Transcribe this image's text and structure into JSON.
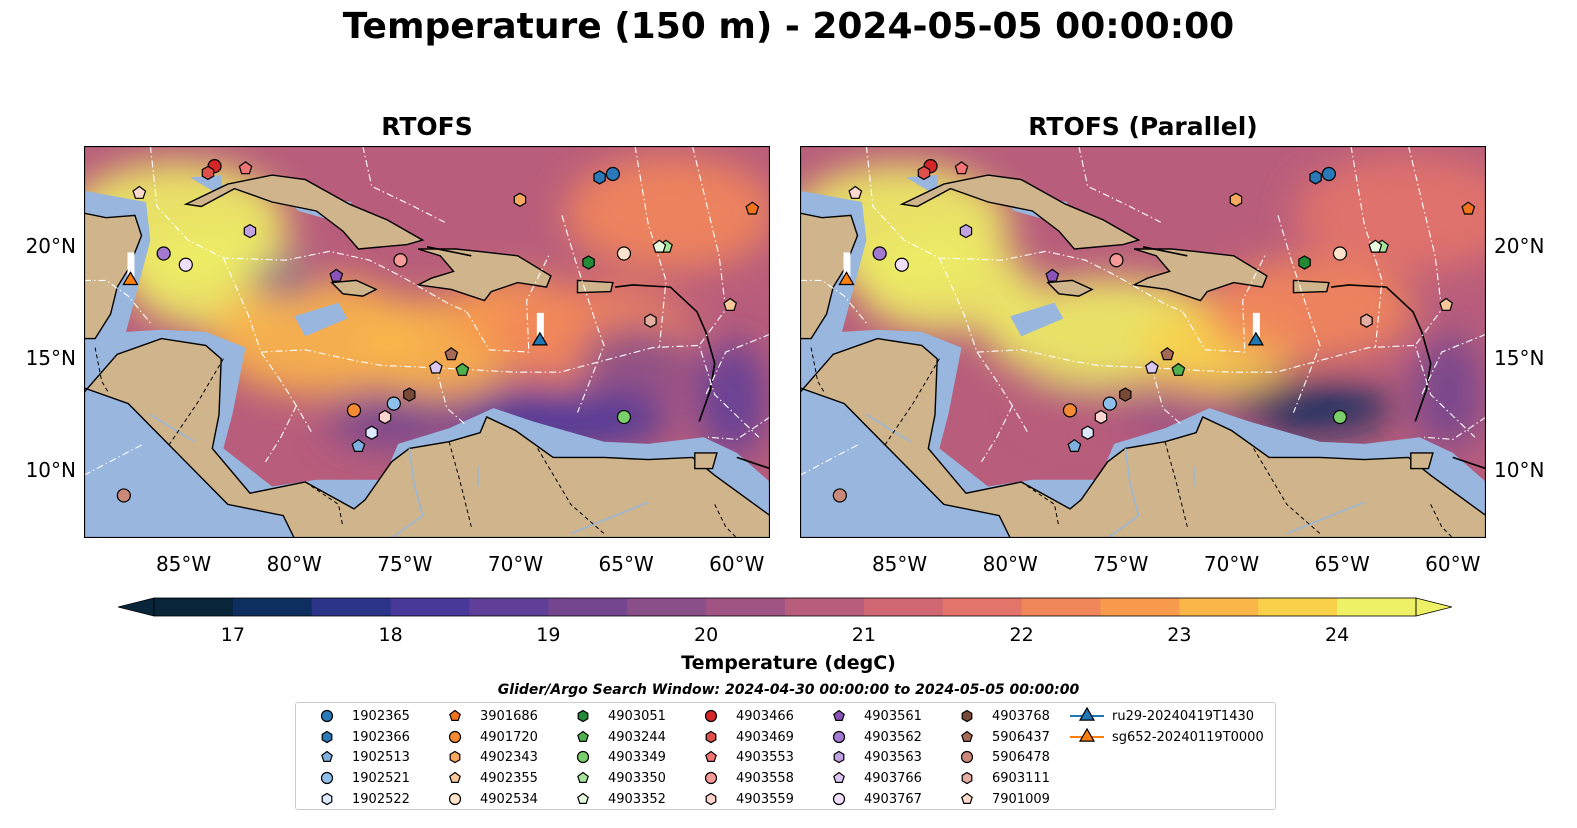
{
  "title": "Temperature (150 m) - 2024-05-05 00:00:00",
  "colorbar": {
    "label": "Temperature (degC)",
    "min": 16.5,
    "max": 24.5,
    "ticks": [
      "17",
      "18",
      "19",
      "20",
      "21",
      "22",
      "23",
      "24"
    ],
    "extend": "both",
    "colors": [
      "#08253a",
      "#0d2e5e",
      "#2b3488",
      "#48389a",
      "#5f3f98",
      "#74468f",
      "#8a4e88",
      "#a05483",
      "#b85d7c",
      "#cf6873",
      "#e3746a",
      "#f2865b",
      "#f89b4c",
      "#fbb64a",
      "#f8d04a",
      "#eef065"
    ]
  },
  "search_window": "Glider/Argo Search Window: 2024-04-30 00:00:00 to 2024-05-05 00:00:00",
  "colors": {
    "land": "#d0b48c",
    "shelf": "#98b6de",
    "eez_lines": "#ffffff",
    "deep_cold": "#0a2a3a"
  },
  "chart_data": [
    {
      "type": "heatmap",
      "title": "RTOFS",
      "variable": "Temperature (150 m)",
      "units": "degC",
      "x_ticks": [
        "85°W",
        "80°W",
        "75°W",
        "70°W",
        "65°W",
        "60°W"
      ],
      "y_ticks": [
        "20°N",
        "15°N",
        "10°N"
      ],
      "y_tick_side": "left",
      "xlim": [
        -89.5,
        -58.5
      ],
      "ylim": [
        7,
        24.5
      ],
      "warm_regions": [
        "Yucatan Channel / Cayman Sea",
        "Central Caribbean near 72°W 15°N"
      ],
      "cold_regions": [
        "Venezuela / Colombia upwelling coast",
        "Pacific south of Central America"
      ]
    },
    {
      "type": "heatmap",
      "title": "RTOFS (Parallel)",
      "variable": "Temperature (150 m)",
      "units": "degC",
      "x_ticks": [
        "85°W",
        "80°W",
        "75°W",
        "70°W",
        "65°W",
        "60°W"
      ],
      "y_ticks": [
        "20°N",
        "15°N",
        "10°N"
      ],
      "y_tick_side": "right",
      "xlim": [
        -89.5,
        -58.5
      ],
      "ylim": [
        7,
        24.5
      ],
      "warm_regions": [
        "Yucatan Channel / Cayman Sea",
        "Central Caribbean 70-75°W 15-17°N"
      ],
      "cold_regions": [
        "Venezuela / Colombia upwelling coast",
        "Pacific south of Central America"
      ]
    }
  ],
  "platforms": [
    {
      "name": "1902365",
      "marker": "circle",
      "color": "#2a79b9",
      "lon": -65.6,
      "lat": 23.25
    },
    {
      "name": "1902366",
      "marker": "hexagon",
      "color": "#2a79b9",
      "lon": -66.2,
      "lat": 23.1
    },
    {
      "name": "1902513",
      "marker": "pentagon",
      "color": "#7fb0e0",
      "lon": -77.1,
      "lat": 11.1
    },
    {
      "name": "1902521",
      "marker": "circle",
      "color": "#8fc0ec",
      "lon": -75.5,
      "lat": 13.0
    },
    {
      "name": "1902522",
      "marker": "hexagon",
      "color": "#dde9ff",
      "lon": -76.5,
      "lat": 11.7
    },
    {
      "name": "3901686",
      "marker": "pentagon",
      "color": "#f1731c",
      "lon": -59.3,
      "lat": 21.7
    },
    {
      "name": "4901720",
      "marker": "circle",
      "color": "#f58a35",
      "lon": -77.3,
      "lat": 12.7
    },
    {
      "name": "4902343",
      "marker": "hexagon",
      "color": "#f7a95e",
      "lon": -69.8,
      "lat": 22.1
    },
    {
      "name": "4902355",
      "marker": "pentagon",
      "color": "#f7c89a",
      "lon": -60.3,
      "lat": 17.4
    },
    {
      "name": "4902534",
      "marker": "circle",
      "color": "#fde3cc",
      "lon": -65.1,
      "lat": 19.7
    },
    {
      "name": "4903051",
      "marker": "hexagon",
      "color": "#238b35",
      "lon": -66.7,
      "lat": 19.3
    },
    {
      "name": "4903244",
      "marker": "pentagon",
      "color": "#4fb14d",
      "lon": -72.4,
      "lat": 14.5
    },
    {
      "name": "4903349",
      "marker": "circle",
      "color": "#7acf6b",
      "lon": -65.1,
      "lat": 12.4
    },
    {
      "name": "4903350",
      "marker": "pentagon",
      "color": "#a7e39a",
      "lon": -63.2,
      "lat": 20.0
    },
    {
      "name": "4903352",
      "marker": "pentagon",
      "color": "#e6f9dd",
      "lon": -63.5,
      "lat": 20.0
    },
    {
      "name": "4903466",
      "marker": "circle",
      "color": "#d5262a",
      "lon": -83.6,
      "lat": 23.6
    },
    {
      "name": "4903469",
      "marker": "hexagon",
      "color": "#e0504b",
      "lon": -83.9,
      "lat": 23.3
    },
    {
      "name": "4903553",
      "marker": "pentagon",
      "color": "#f27474",
      "lon": -82.2,
      "lat": 23.5
    },
    {
      "name": "4903558",
      "marker": "circle",
      "color": "#f59a96",
      "lon": -75.2,
      "lat": 19.4
    },
    {
      "name": "4903559",
      "marker": "hexagon",
      "color": "#fcd3cf",
      "lon": -75.9,
      "lat": 12.4
    },
    {
      "name": "4903561",
      "marker": "pentagon",
      "color": "#8a53b9",
      "lon": -78.1,
      "lat": 18.7
    },
    {
      "name": "4903562",
      "marker": "circle",
      "color": "#a479d1",
      "lon": -85.9,
      "lat": 19.7
    },
    {
      "name": "4903563",
      "marker": "hexagon",
      "color": "#c1a2e1",
      "lon": -82.0,
      "lat": 20.7
    },
    {
      "name": "4903766",
      "marker": "pentagon",
      "color": "#d9c6f1",
      "lon": -73.6,
      "lat": 14.6
    },
    {
      "name": "4903767",
      "marker": "circle",
      "color": "#efdff9",
      "lon": -84.9,
      "lat": 19.2
    },
    {
      "name": "4903768",
      "marker": "hexagon",
      "color": "#7a4a38",
      "lon": -74.8,
      "lat": 13.4
    },
    {
      "name": "5906437",
      "marker": "pentagon",
      "color": "#a56a55",
      "lon": -72.9,
      "lat": 15.2
    },
    {
      "name": "5906478",
      "marker": "circle",
      "color": "#c9887a",
      "lon": -87.7,
      "lat": 8.9
    },
    {
      "name": "6903111",
      "marker": "hexagon",
      "color": "#e5aea2",
      "lon": -63.9,
      "lat": 16.7
    },
    {
      "name": "7901009",
      "marker": "pentagon",
      "color": "#fdd9cc",
      "lon": -87.0,
      "lat": 22.4
    },
    {
      "name": "ru29-20240419T1430",
      "marker": "triangle",
      "color": "#1f77b4",
      "lon": -68.9,
      "lat": 15.8,
      "track": true
    },
    {
      "name": "sg652-20240119T0000",
      "marker": "triangle",
      "color": "#ff7f0e",
      "lon": -87.4,
      "lat": 18.5,
      "track": true
    }
  ]
}
